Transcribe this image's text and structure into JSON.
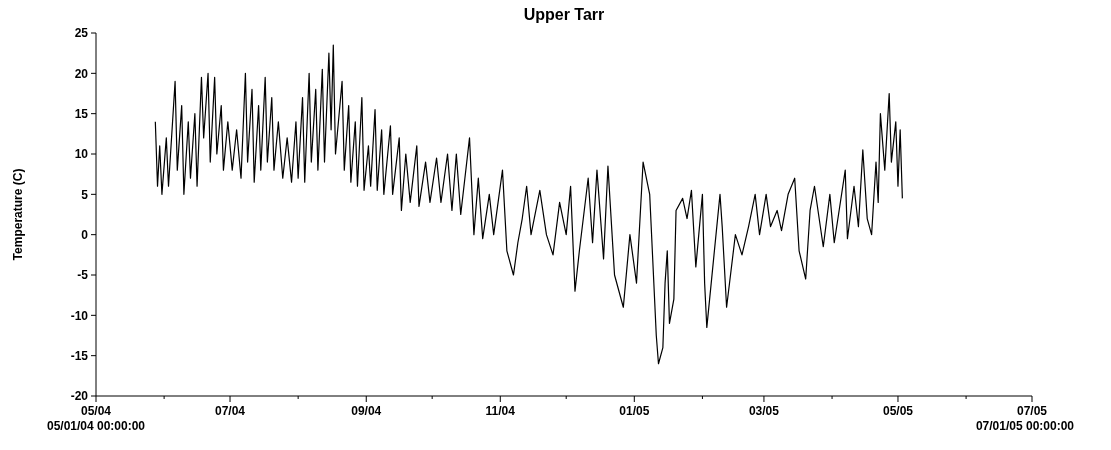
{
  "chart_data": {
    "type": "line",
    "title": "Upper Tarr",
    "ylabel": "Temperature (C)",
    "annotations": [
      "05/01/04 00:00:00",
      "07/01/05 00:00:00"
    ],
    "xlim": [
      "2004-05-01",
      "2005-07-01"
    ],
    "xticks": [
      {
        "value": "2004-05-01",
        "label": "05/04"
      },
      {
        "value": "2004-06-01",
        "label": null
      },
      {
        "value": "2004-07-01",
        "label": "07/04"
      },
      {
        "value": "2004-08-01",
        "label": null
      },
      {
        "value": "2004-09-01",
        "label": "09/04"
      },
      {
        "value": "2004-10-01",
        "label": null
      },
      {
        "value": "2004-11-01",
        "label": "11/04"
      },
      {
        "value": "2004-12-01",
        "label": null
      },
      {
        "value": "2005-01-01",
        "label": "01/05"
      },
      {
        "value": "2005-02-01",
        "label": null
      },
      {
        "value": "2005-03-01",
        "label": "03/05"
      },
      {
        "value": "2005-04-01",
        "label": null
      },
      {
        "value": "2005-05-01",
        "label": "05/05"
      },
      {
        "value": "2005-06-01",
        "label": null
      },
      {
        "value": "2005-07-01",
        "label": "07/05"
      }
    ],
    "ylim": [
      -20,
      25
    ],
    "yticks": [
      -20,
      -15,
      -10,
      -5,
      0,
      5,
      10,
      15,
      20,
      25
    ],
    "grid": false,
    "marker": "none",
    "line_style": "solid",
    "series": [
      {
        "color": "#000000",
        "x": [
          "2004-05-28",
          "2004-05-29",
          "2004-05-30",
          "2004-05-31",
          "2004-06-02",
          "2004-06-03",
          "2004-06-06",
          "2004-06-07",
          "2004-06-09",
          "2004-06-10",
          "2004-06-12",
          "2004-06-13",
          "2004-06-15",
          "2004-06-16",
          "2004-06-18",
          "2004-06-19",
          "2004-06-21",
          "2004-06-22",
          "2004-06-24",
          "2004-06-25",
          "2004-06-27",
          "2004-06-28",
          "2004-06-30",
          "2004-07-02",
          "2004-07-04",
          "2004-07-06",
          "2004-07-08",
          "2004-07-09",
          "2004-07-11",
          "2004-07-12",
          "2004-07-14",
          "2004-07-15",
          "2004-07-17",
          "2004-07-18",
          "2004-07-20",
          "2004-07-21",
          "2004-07-23",
          "2004-07-25",
          "2004-07-27",
          "2004-07-29",
          "2004-07-31",
          "2004-08-01",
          "2004-08-03",
          "2004-08-04",
          "2004-08-06",
          "2004-08-07",
          "2004-08-09",
          "2004-08-10",
          "2004-08-12",
          "2004-08-13",
          "2004-08-15",
          "2004-08-16",
          "2004-08-17",
          "2004-08-18",
          "2004-08-21",
          "2004-08-22",
          "2004-08-24",
          "2004-08-25",
          "2004-08-27",
          "2004-08-28",
          "2004-08-30",
          "2004-08-31",
          "2004-09-02",
          "2004-09-03",
          "2004-09-05",
          "2004-09-06",
          "2004-09-08",
          "2004-09-09",
          "2004-09-12",
          "2004-09-13",
          "2004-09-16",
          "2004-09-17",
          "2004-09-19",
          "2004-09-21",
          "2004-09-24",
          "2004-09-25",
          "2004-09-28",
          "2004-09-30",
          "2004-10-03",
          "2004-10-05",
          "2004-10-08",
          "2004-10-10",
          "2004-10-12",
          "2004-10-14",
          "2004-10-18",
          "2004-10-20",
          "2004-10-22",
          "2004-10-24",
          "2004-10-27",
          "2004-10-29",
          "2004-11-02",
          "2004-11-04",
          "2004-11-07",
          "2004-11-09",
          "2004-11-11",
          "2004-11-13",
          "2004-11-15",
          "2004-11-19",
          "2004-11-22",
          "2004-11-25",
          "2004-11-28",
          "2004-12-01",
          "2004-12-03",
          "2004-12-05",
          "2004-12-07",
          "2004-12-11",
          "2004-12-13",
          "2004-12-15",
          "2004-12-18",
          "2004-12-20",
          "2004-12-23",
          "2004-12-27",
          "2004-12-30",
          "2005-01-02",
          "2005-01-05",
          "2005-01-08",
          "2005-01-11",
          "2005-01-12",
          "2005-01-14",
          "2005-01-15",
          "2005-01-16",
          "2005-01-17",
          "2005-01-19",
          "2005-01-20",
          "2005-01-23",
          "2005-01-25",
          "2005-01-27",
          "2005-01-29",
          "2005-02-01",
          "2005-02-02",
          "2005-02-03",
          "2005-02-05",
          "2005-02-09",
          "2005-02-10",
          "2005-02-12",
          "2005-02-16",
          "2005-02-19",
          "2005-02-22",
          "2005-02-25",
          "2005-02-27",
          "2005-03-02",
          "2005-03-04",
          "2005-03-07",
          "2005-03-09",
          "2005-03-12",
          "2005-03-15",
          "2005-03-17",
          "2005-03-20",
          "2005-03-22",
          "2005-03-24",
          "2005-03-28",
          "2005-03-31",
          "2005-04-02",
          "2005-04-07",
          "2005-04-08",
          "2005-04-11",
          "2005-04-13",
          "2005-04-15",
          "2005-04-17",
          "2005-04-19",
          "2005-04-21",
          "2005-04-22",
          "2005-04-23",
          "2005-04-25",
          "2005-04-27",
          "2005-04-28",
          "2005-04-30",
          "2005-05-01",
          "2005-05-02",
          "2005-05-03"
        ],
        "values": [
          14,
          6,
          11,
          5,
          12,
          6,
          19,
          8,
          16,
          5,
          14,
          7,
          15,
          6,
          19.5,
          12,
          20,
          9,
          19.5,
          10,
          16,
          8,
          14,
          8,
          13,
          7,
          20,
          9,
          18,
          6.5,
          16,
          8,
          19.5,
          9,
          17,
          8,
          14,
          7,
          12,
          6.5,
          14,
          7,
          17,
          6.5,
          20,
          9,
          18,
          8,
          20.5,
          9,
          22.5,
          13,
          23.5,
          10,
          19,
          8,
          16,
          6.5,
          14,
          6,
          17,
          5.5,
          11,
          6,
          15.5,
          5.5,
          13,
          5,
          13.5,
          5,
          12,
          3,
          10,
          4,
          11,
          3.5,
          9,
          4,
          9.5,
          4,
          10,
          3,
          10,
          2.5,
          12,
          0,
          7,
          -0.5,
          5,
          0,
          8,
          -2,
          -5,
          -1,
          2,
          6,
          0,
          5.5,
          0,
          -2.5,
          4,
          0,
          6,
          -7,
          -2,
          7,
          -1,
          8,
          -3,
          8.5,
          -5,
          -9,
          0,
          -6,
          9,
          5,
          -12.5,
          -16,
          -14,
          -6,
          -2,
          -11,
          -8,
          3,
          4.5,
          2,
          5.5,
          -4,
          5,
          -6,
          -11.5,
          -6,
          5,
          1,
          -9,
          0,
          -2.5,
          1,
          5,
          0,
          5,
          1,
          3,
          0.5,
          5,
          7,
          -2,
          -5.5,
          3,
          6,
          -1.5,
          5,
          -1,
          8,
          -0.5,
          6,
          1,
          10.5,
          2,
          0,
          9,
          4,
          15,
          8,
          17.5,
          9,
          14,
          6,
          13,
          4.5
        ]
      }
    ]
  }
}
